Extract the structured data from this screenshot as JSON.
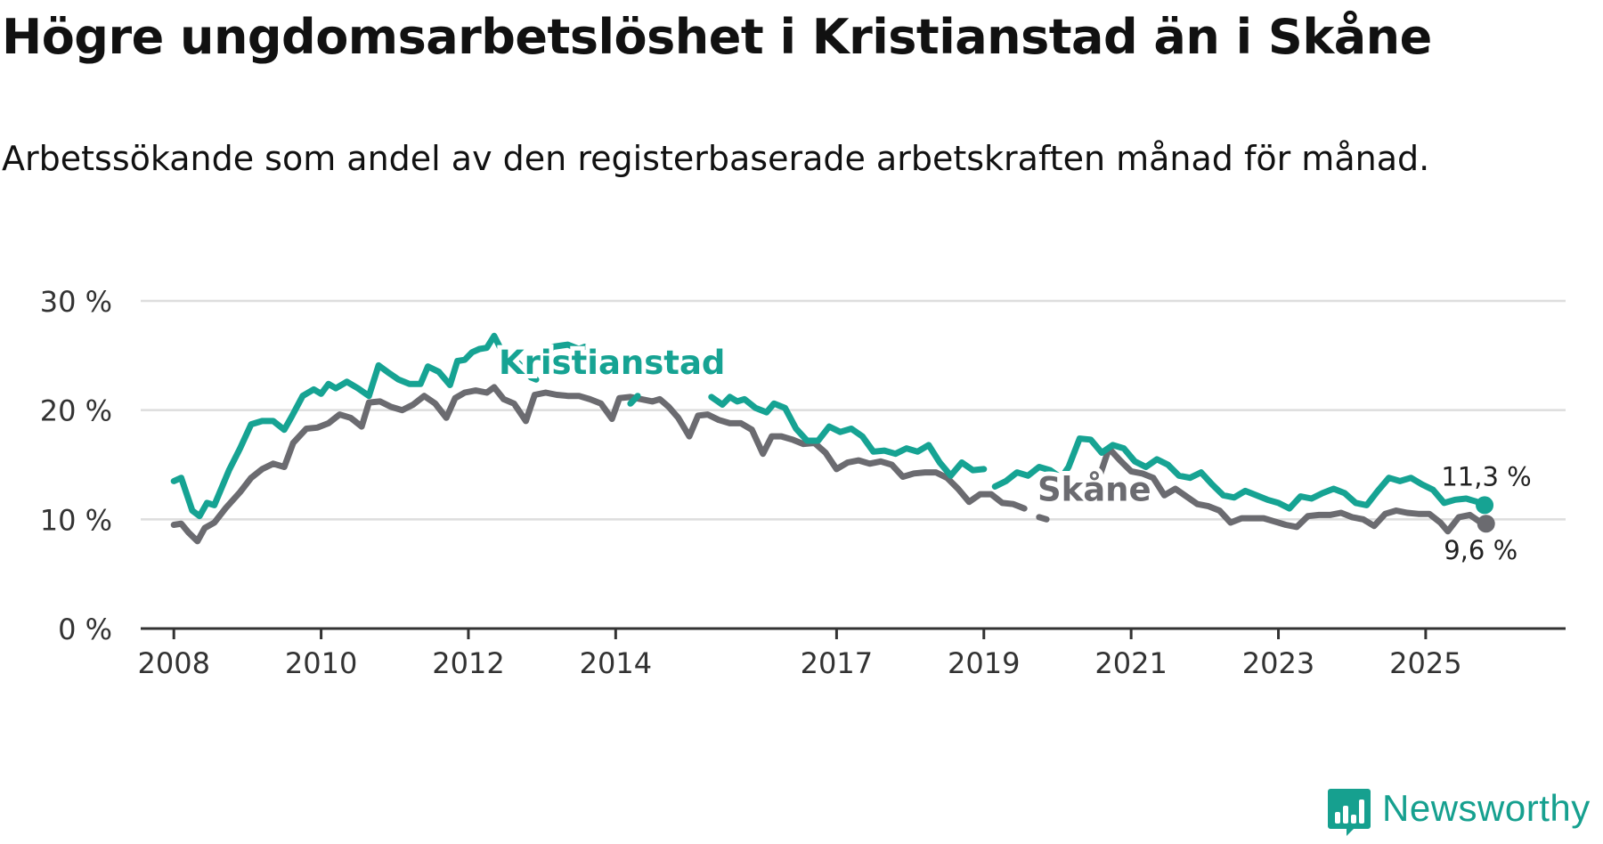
{
  "title": "Högre ungdomsarbetslöshet i Kristianstad än i Skåne",
  "subtitle": "Arbetssökande som andel av den registerbaserade arbetskraften månad för månad.",
  "brand": {
    "name": "Newsworthy",
    "icon": "newsworthy-logo-icon"
  },
  "colors": {
    "kristianstad": "#16a393",
    "skane": "#6b6b70",
    "grid": "#dddddd",
    "axis": "#333333",
    "text": "#333333"
  },
  "chart_data": {
    "type": "line",
    "title": "Högre ungdomsarbetslöshet i Kristianstad än i Skåne",
    "xlabel": "",
    "ylabel": "",
    "ylim": [
      0,
      30
    ],
    "y_ticks": [
      {
        "value": 0,
        "label": "0 %"
      },
      {
        "value": 10,
        "label": "10 %"
      },
      {
        "value": 20,
        "label": "20 %"
      },
      {
        "value": 30,
        "label": "30 %"
      }
    ],
    "xlim": [
      2007.55,
      2026.9
    ],
    "x_ticks": [
      {
        "value": 2008.0,
        "label": "2008"
      },
      {
        "value": 2010.0,
        "label": "2010"
      },
      {
        "value": 2012.0,
        "label": "2012"
      },
      {
        "value": 2014.0,
        "label": "2014"
      },
      {
        "value": 2017.0,
        "label": "2017"
      },
      {
        "value": 2019.0,
        "label": "2019"
      },
      {
        "value": 2021.0,
        "label": "2021"
      },
      {
        "value": 2023.0,
        "label": "2023"
      },
      {
        "value": 2025.0,
        "label": "2025"
      }
    ],
    "series": [
      {
        "name": "Kristianstad",
        "label": "Kristianstad",
        "color": "#16a393",
        "end_label": "11,3 %",
        "points": [
          [
            2008.0,
            13.5
          ],
          [
            2008.1,
            13.8
          ],
          [
            2008.25,
            10.8
          ],
          [
            2008.35,
            10.3
          ],
          [
            2008.45,
            11.5
          ],
          [
            2008.55,
            11.3
          ],
          [
            2008.75,
            14.5
          ],
          [
            2008.9,
            16.5
          ],
          [
            2009.05,
            18.7
          ],
          [
            2009.2,
            19.0
          ],
          [
            2009.35,
            19.0
          ],
          [
            2009.5,
            18.2
          ],
          [
            2009.6,
            19.4
          ],
          [
            2009.75,
            21.3
          ],
          [
            2009.9,
            21.9
          ],
          [
            2010.0,
            21.5
          ],
          [
            2010.1,
            22.4
          ],
          [
            2010.2,
            22.0
          ],
          [
            2010.35,
            22.6
          ],
          [
            2010.5,
            22.0
          ],
          [
            2010.65,
            21.3
          ],
          [
            2010.78,
            24.1
          ],
          [
            2010.9,
            23.5
          ],
          [
            2011.05,
            22.8
          ],
          [
            2011.2,
            22.4
          ],
          [
            2011.35,
            22.4
          ],
          [
            2011.45,
            24.0
          ],
          [
            2011.6,
            23.5
          ],
          [
            2011.75,
            22.3
          ],
          [
            2011.85,
            24.5
          ],
          [
            2011.95,
            24.6
          ],
          [
            2012.05,
            25.3
          ],
          [
            2012.15,
            25.6
          ],
          [
            2012.25,
            25.7
          ],
          [
            2012.35,
            26.8
          ],
          [
            2012.5,
            24.8
          ],
          [
            2012.65,
            24.5
          ],
          [
            2012.75,
            23.8
          ],
          [
            2012.85,
            23.0
          ],
          [
            2012.92,
            22.8
          ]
        ],
        "points_2": [
          [
            2013.02,
            25.0
          ],
          [
            2013.15,
            25.8
          ],
          [
            2013.35,
            26.0
          ],
          [
            2013.5,
            25.6
          ],
          [
            2013.58,
            25.8
          ]
        ],
        "points_3": [
          [
            2014.2,
            20.6
          ],
          [
            2014.3,
            21.3
          ]
        ],
        "points_4": [
          [
            2015.3,
            21.2
          ],
          [
            2015.45,
            20.5
          ],
          [
            2015.55,
            21.2
          ],
          [
            2015.65,
            20.8
          ],
          [
            2015.75,
            21.0
          ],
          [
            2015.9,
            20.2
          ],
          [
            2016.05,
            19.8
          ],
          [
            2016.15,
            20.6
          ],
          [
            2016.3,
            20.2
          ],
          [
            2016.45,
            18.3
          ],
          [
            2016.6,
            17.2
          ],
          [
            2016.75,
            17.2
          ],
          [
            2016.9,
            18.5
          ],
          [
            2017.05,
            18.0
          ],
          [
            2017.2,
            18.3
          ],
          [
            2017.35,
            17.6
          ],
          [
            2017.5,
            16.2
          ],
          [
            2017.65,
            16.3
          ],
          [
            2017.8,
            16.0
          ],
          [
            2017.95,
            16.5
          ],
          [
            2018.1,
            16.2
          ],
          [
            2018.25,
            16.8
          ],
          [
            2018.4,
            15.2
          ],
          [
            2018.55,
            14.0
          ],
          [
            2018.7,
            15.2
          ],
          [
            2018.85,
            14.5
          ],
          [
            2019.0,
            14.6
          ]
        ],
        "points_5": [
          [
            2019.15,
            13.0
          ],
          [
            2019.3,
            13.5
          ],
          [
            2019.45,
            14.3
          ],
          [
            2019.6,
            14.0
          ],
          [
            2019.75,
            14.8
          ],
          [
            2019.9,
            14.5
          ],
          [
            2020.05,
            13.8
          ],
          [
            2020.15,
            14.8
          ],
          [
            2020.3,
            17.4
          ],
          [
            2020.45,
            17.3
          ],
          [
            2020.6,
            16.1
          ],
          [
            2020.75,
            16.8
          ],
          [
            2020.9,
            16.5
          ],
          [
            2021.05,
            15.3
          ],
          [
            2021.2,
            14.8
          ],
          [
            2021.35,
            15.5
          ],
          [
            2021.5,
            15.0
          ],
          [
            2021.65,
            14.0
          ],
          [
            2021.8,
            13.8
          ],
          [
            2021.95,
            14.3
          ],
          [
            2022.1,
            13.2
          ],
          [
            2022.25,
            12.2
          ],
          [
            2022.4,
            12.0
          ],
          [
            2022.55,
            12.6
          ],
          [
            2022.7,
            12.2
          ],
          [
            2022.85,
            11.8
          ],
          [
            2023.0,
            11.5
          ],
          [
            2023.15,
            11.0
          ],
          [
            2023.3,
            12.1
          ],
          [
            2023.45,
            11.9
          ],
          [
            2023.6,
            12.4
          ],
          [
            2023.75,
            12.8
          ],
          [
            2023.9,
            12.4
          ],
          [
            2024.05,
            11.5
          ],
          [
            2024.2,
            11.3
          ],
          [
            2024.35,
            12.6
          ],
          [
            2024.5,
            13.8
          ],
          [
            2024.65,
            13.5
          ],
          [
            2024.8,
            13.8
          ],
          [
            2024.95,
            13.2
          ],
          [
            2025.1,
            12.7
          ],
          [
            2025.25,
            11.5
          ],
          [
            2025.4,
            11.8
          ],
          [
            2025.55,
            11.9
          ],
          [
            2025.7,
            11.6
          ],
          [
            2025.8,
            11.3
          ]
        ]
      },
      {
        "name": "Skåne",
        "label": "Skåne",
        "color": "#6b6b70",
        "end_label": "9,6 %",
        "points": [
          [
            2008.0,
            9.5
          ],
          [
            2008.1,
            9.6
          ],
          [
            2008.2,
            8.8
          ],
          [
            2008.32,
            8.0
          ],
          [
            2008.42,
            9.2
          ],
          [
            2008.55,
            9.7
          ],
          [
            2008.7,
            11.0
          ],
          [
            2008.9,
            12.5
          ],
          [
            2009.05,
            13.8
          ],
          [
            2009.2,
            14.6
          ],
          [
            2009.35,
            15.1
          ],
          [
            2009.5,
            14.8
          ],
          [
            2009.62,
            17.0
          ],
          [
            2009.8,
            18.3
          ],
          [
            2009.95,
            18.4
          ],
          [
            2010.1,
            18.8
          ],
          [
            2010.25,
            19.6
          ],
          [
            2010.4,
            19.3
          ],
          [
            2010.55,
            18.5
          ],
          [
            2010.65,
            20.7
          ],
          [
            2010.8,
            20.8
          ],
          [
            2010.95,
            20.3
          ],
          [
            2011.1,
            20.0
          ],
          [
            2011.25,
            20.5
          ],
          [
            2011.4,
            21.3
          ],
          [
            2011.55,
            20.6
          ],
          [
            2011.7,
            19.3
          ],
          [
            2011.82,
            21.1
          ],
          [
            2011.95,
            21.6
          ],
          [
            2012.1,
            21.8
          ],
          [
            2012.25,
            21.6
          ],
          [
            2012.35,
            22.1
          ],
          [
            2012.48,
            21.0
          ],
          [
            2012.62,
            20.6
          ],
          [
            2012.78,
            19.0
          ],
          [
            2012.9,
            21.4
          ],
          [
            2013.05,
            21.6
          ],
          [
            2013.2,
            21.4
          ],
          [
            2013.35,
            21.3
          ],
          [
            2013.5,
            21.3
          ],
          [
            2013.65,
            21.0
          ],
          [
            2013.8,
            20.6
          ],
          [
            2013.95,
            19.2
          ],
          [
            2014.05,
            21.1
          ],
          [
            2014.2,
            21.2
          ],
          [
            2014.35,
            21.0
          ],
          [
            2014.5,
            20.8
          ],
          [
            2014.6,
            21.0
          ],
          [
            2014.72,
            20.3
          ],
          [
            2014.85,
            19.3
          ],
          [
            2015.0,
            17.6
          ],
          [
            2015.12,
            19.5
          ],
          [
            2015.25,
            19.6
          ],
          [
            2015.4,
            19.1
          ],
          [
            2015.55,
            18.8
          ],
          [
            2015.7,
            18.8
          ],
          [
            2015.85,
            18.2
          ],
          [
            2016.0,
            16.0
          ],
          [
            2016.12,
            17.6
          ],
          [
            2016.25,
            17.6
          ],
          [
            2016.4,
            17.3
          ],
          [
            2016.55,
            16.9
          ],
          [
            2016.7,
            17.0
          ],
          [
            2016.85,
            16.1
          ],
          [
            2017.0,
            14.6
          ],
          [
            2017.15,
            15.2
          ],
          [
            2017.3,
            15.4
          ],
          [
            2017.45,
            15.1
          ],
          [
            2017.6,
            15.3
          ],
          [
            2017.75,
            15.0
          ],
          [
            2017.9,
            13.9
          ],
          [
            2018.05,
            14.2
          ],
          [
            2018.2,
            14.3
          ],
          [
            2018.35,
            14.3
          ],
          [
            2018.5,
            13.8
          ],
          [
            2018.65,
            12.8
          ],
          [
            2018.8,
            11.6
          ],
          [
            2018.95,
            12.3
          ],
          [
            2019.1,
            12.3
          ],
          [
            2019.25,
            11.5
          ],
          [
            2019.4,
            11.4
          ],
          [
            2019.55,
            11.0
          ]
        ],
        "points_2": [
          [
            2019.75,
            10.2
          ],
          [
            2019.85,
            10.0
          ]
        ],
        "points_3": [
          [
            2020.55,
            13.5
          ],
          [
            2020.7,
            16.5
          ],
          [
            2020.85,
            15.4
          ],
          [
            2021.0,
            14.4
          ],
          [
            2021.15,
            14.2
          ],
          [
            2021.3,
            13.8
          ],
          [
            2021.45,
            12.2
          ],
          [
            2021.6,
            12.8
          ],
          [
            2021.75,
            12.1
          ],
          [
            2021.9,
            11.4
          ],
          [
            2022.05,
            11.2
          ],
          [
            2022.2,
            10.8
          ],
          [
            2022.35,
            9.7
          ],
          [
            2022.5,
            10.1
          ],
          [
            2022.65,
            10.1
          ],
          [
            2022.8,
            10.1
          ],
          [
            2022.95,
            9.8
          ],
          [
            2023.1,
            9.5
          ],
          [
            2023.25,
            9.3
          ],
          [
            2023.4,
            10.3
          ],
          [
            2023.55,
            10.4
          ],
          [
            2023.7,
            10.4
          ],
          [
            2023.85,
            10.6
          ],
          [
            2024.0,
            10.2
          ],
          [
            2024.15,
            10.0
          ],
          [
            2024.3,
            9.4
          ],
          [
            2024.45,
            10.5
          ],
          [
            2024.6,
            10.8
          ],
          [
            2024.75,
            10.6
          ],
          [
            2024.9,
            10.5
          ],
          [
            2025.05,
            10.5
          ],
          [
            2025.2,
            9.7
          ],
          [
            2025.3,
            8.9
          ],
          [
            2025.45,
            10.2
          ],
          [
            2025.6,
            10.4
          ],
          [
            2025.75,
            9.7
          ],
          [
            2025.82,
            9.6
          ]
        ]
      }
    ],
    "series_labels": [
      {
        "text": "Kristianstad",
        "x": 2013.95,
        "y": 23.3,
        "color": "#16a393"
      },
      {
        "text": "Skåne",
        "x": 2020.5,
        "y": 11.7,
        "color": "#6b6b70"
      }
    ]
  }
}
